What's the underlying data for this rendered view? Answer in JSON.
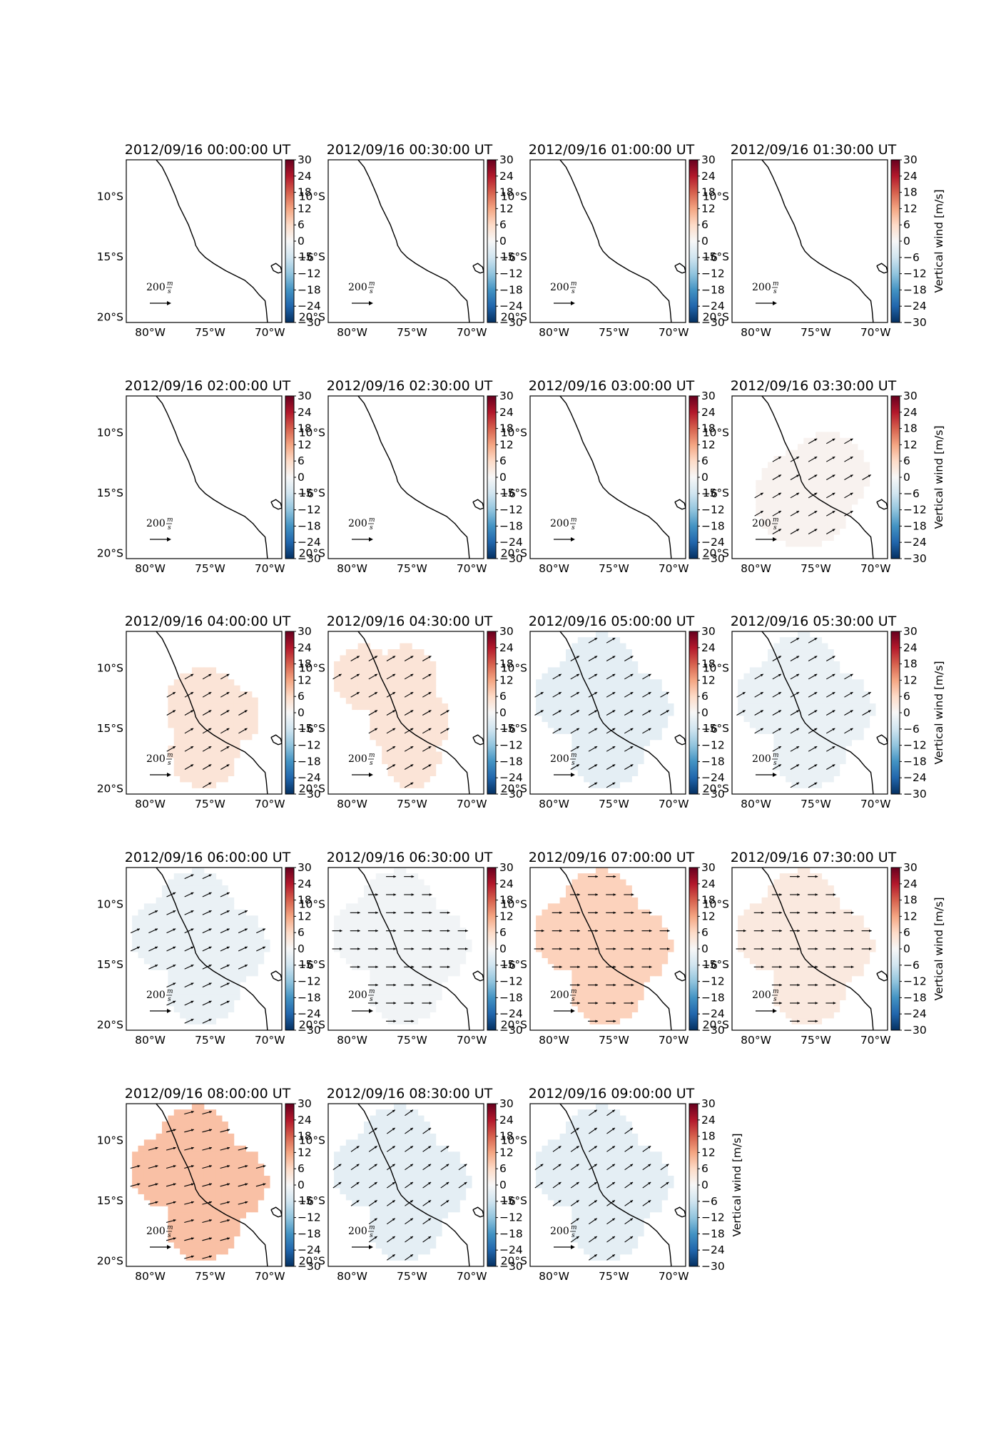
{
  "figure": {
    "colorbar_label": "Vertical wind [m/s]",
    "colorbar_ticks": [
      30,
      24,
      18,
      12,
      6,
      0,
      -6,
      -12,
      -18,
      -24,
      -30
    ],
    "lon_ticks": [
      "80°W",
      "75°W",
      "70°W"
    ],
    "lat_ticks": [
      "10°S",
      "15°S",
      "20°S"
    ],
    "quiver_key_label": "200 m/s",
    "colormap": [
      "#67001f",
      "#b2182b",
      "#d6604d",
      "#f4a582",
      "#fddbc7",
      "#f7f7f7",
      "#d1e5f0",
      "#92c5de",
      "#4393c3",
      "#2166ac",
      "#053061"
    ]
  },
  "chart_data": [
    {
      "type": "heatmap",
      "title": "2012/09/16 00:00:00 UT",
      "xlim": [
        -82,
        -69
      ],
      "ylim": [
        -20.5,
        -7
      ],
      "region": "none",
      "vertical_wind": null,
      "wind_dir_deg": null
    },
    {
      "type": "heatmap",
      "title": "2012/09/16 00:30:00 UT",
      "xlim": [
        -82,
        -69
      ],
      "ylim": [
        -20.5,
        -7
      ],
      "region": "none",
      "vertical_wind": null,
      "wind_dir_deg": null
    },
    {
      "type": "heatmap",
      "title": "2012/09/16 01:00:00 UT",
      "xlim": [
        -82,
        -69
      ],
      "ylim": [
        -20.5,
        -7
      ],
      "region": "none",
      "vertical_wind": null,
      "wind_dir_deg": null
    },
    {
      "type": "heatmap",
      "title": "2012/09/16 01:30:00 UT",
      "xlim": [
        -82,
        -69
      ],
      "ylim": [
        -20.5,
        -7
      ],
      "region": "none",
      "vertical_wind": null,
      "wind_dir_deg": null
    },
    {
      "type": "heatmap",
      "title": "2012/09/16 02:00:00 UT",
      "xlim": [
        -82,
        -69
      ],
      "ylim": [
        -20.5,
        -7
      ],
      "region": "none",
      "vertical_wind": null,
      "wind_dir_deg": null
    },
    {
      "type": "heatmap",
      "title": "2012/09/16 02:30:00 UT",
      "xlim": [
        -82,
        -69
      ],
      "ylim": [
        -20.5,
        -7
      ],
      "region": "none",
      "vertical_wind": null,
      "wind_dir_deg": null
    },
    {
      "type": "heatmap",
      "title": "2012/09/16 03:00:00 UT",
      "xlim": [
        -82,
        -69
      ],
      "ylim": [
        -20.5,
        -7
      ],
      "region": "none",
      "vertical_wind": null,
      "wind_dir_deg": null
    },
    {
      "type": "heatmap",
      "title": "2012/09/16 03:30:00 UT",
      "xlim": [
        -82,
        -69
      ],
      "ylim": [
        -20.5,
        -7
      ],
      "region": "small",
      "vertical_wind": 1,
      "wind_dir_deg": 30
    },
    {
      "type": "heatmap",
      "title": "2012/09/16 04:00:00 UT",
      "xlim": [
        -82,
        -69
      ],
      "ylim": [
        -20.5,
        -7
      ],
      "region": "medium",
      "vertical_wind": 4,
      "wind_dir_deg": 30
    },
    {
      "type": "heatmap",
      "title": "2012/09/16 04:30:00 UT",
      "xlim": [
        -82,
        -69
      ],
      "ylim": [
        -20.5,
        -7
      ],
      "region": "large2",
      "vertical_wind": 4,
      "wind_dir_deg": 30
    },
    {
      "type": "heatmap",
      "title": "2012/09/16 05:00:00 UT",
      "xlim": [
        -82,
        -69
      ],
      "ylim": [
        -20.5,
        -7
      ],
      "region": "large",
      "vertical_wind": -3,
      "wind_dir_deg": 30
    },
    {
      "type": "heatmap",
      "title": "2012/09/16 05:30:00 UT",
      "xlim": [
        -82,
        -69
      ],
      "ylim": [
        -20.5,
        -7
      ],
      "region": "large",
      "vertical_wind": -2,
      "wind_dir_deg": 30
    },
    {
      "type": "heatmap",
      "title": "2012/09/16 06:00:00 UT",
      "xlim": [
        -82,
        -69
      ],
      "ylim": [
        -20.5,
        -7
      ],
      "region": "large",
      "vertical_wind": -2,
      "wind_dir_deg": 25
    },
    {
      "type": "heatmap",
      "title": "2012/09/16 06:30:00 UT",
      "xlim": [
        -82,
        -69
      ],
      "ylim": [
        -20.5,
        -7
      ],
      "region": "large",
      "vertical_wind": -1,
      "wind_dir_deg": 0
    },
    {
      "type": "heatmap",
      "title": "2012/09/16 07:00:00 UT",
      "xlim": [
        -82,
        -69
      ],
      "ylim": [
        -20.5,
        -7
      ],
      "region": "large",
      "vertical_wind": 7,
      "wind_dir_deg": 0
    },
    {
      "type": "heatmap",
      "title": "2012/09/16 07:30:00 UT",
      "xlim": [
        -82,
        -69
      ],
      "ylim": [
        -20.5,
        -7
      ],
      "region": "large",
      "vertical_wind": 3,
      "wind_dir_deg": 0
    },
    {
      "type": "heatmap",
      "title": "2012/09/16 08:00:00 UT",
      "xlim": [
        -82,
        -69
      ],
      "ylim": [
        -20.5,
        -7
      ],
      "region": "large",
      "vertical_wind": 9,
      "wind_dir_deg": 15
    },
    {
      "type": "heatmap",
      "title": "2012/09/16 08:30:00 UT",
      "xlim": [
        -82,
        -69
      ],
      "ylim": [
        -20.5,
        -7
      ],
      "region": "large",
      "vertical_wind": -3,
      "wind_dir_deg": 35
    },
    {
      "type": "heatmap",
      "title": "2012/09/16 09:00:00 UT",
      "xlim": [
        -82,
        -69
      ],
      "ylim": [
        -20.5,
        -7
      ],
      "region": "large",
      "vertical_wind": -3,
      "wind_dir_deg": 35
    }
  ]
}
